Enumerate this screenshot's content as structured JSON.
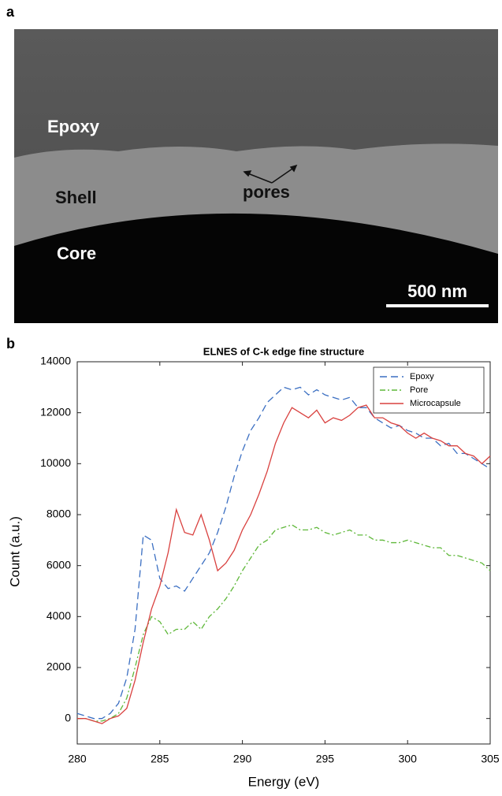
{
  "panel_labels": [
    "a",
    "b"
  ],
  "image": {
    "labels": [
      "Epoxy",
      "Shell",
      "Core",
      "pores"
    ],
    "scale_bar": "500 nm"
  },
  "chart_data": {
    "type": "line",
    "title": "ELNES of C-k edge fine structure",
    "x_label": "Energy (eV)",
    "y_label": "Count (a.u.)",
    "x": [
      280,
      280.5,
      281,
      281.5,
      282,
      282.5,
      283,
      283.5,
      284,
      284.5,
      285,
      285.5,
      286,
      286.5,
      287,
      287.5,
      288,
      288.5,
      289,
      289.5,
      290,
      290.5,
      291,
      291.5,
      292,
      292.5,
      293,
      293.5,
      294,
      294.5,
      295,
      295.5,
      296,
      296.5,
      297,
      297.5,
      298,
      298.5,
      299,
      299.5,
      300,
      300.5,
      301,
      301.5,
      302,
      302.5,
      303,
      303.5,
      304,
      304.5,
      305
    ],
    "series": [
      {
        "name": "Epoxy",
        "color": "#3b6fc2",
        "linestyle": "dashed",
        "values": [
          200,
          100,
          0,
          0,
          200,
          600,
          1600,
          3500,
          7200,
          7000,
          5500,
          5100,
          5200,
          5000,
          5500,
          6000,
          6500,
          7300,
          8300,
          9500,
          10500,
          11300,
          11800,
          12400,
          12700,
          13000,
          12900,
          13000,
          12700,
          12900,
          12700,
          12600,
          12500,
          12600,
          12200,
          12200,
          11800,
          11600,
          11400,
          11500,
          11300,
          11200,
          11000,
          11000,
          10700,
          10800,
          10400,
          10400,
          10200,
          10000,
          9800
        ]
      },
      {
        "name": "Pore",
        "color": "#5fb83a",
        "linestyle": "dashdot",
        "values": [
          0,
          0,
          -100,
          -100,
          0,
          200,
          800,
          2000,
          3300,
          4000,
          3800,
          3300,
          3500,
          3500,
          3800,
          3500,
          4000,
          4300,
          4700,
          5200,
          5800,
          6300,
          6800,
          7000,
          7400,
          7500,
          7600,
          7400,
          7400,
          7500,
          7300,
          7200,
          7300,
          7400,
          7200,
          7200,
          7000,
          7000,
          6900,
          6900,
          7000,
          6900,
          6800,
          6700,
          6700,
          6400,
          6400,
          6300,
          6200,
          6100,
          5800
        ]
      },
      {
        "name": "Microcapsule",
        "color": "#d9413f",
        "linestyle": "solid",
        "values": [
          0,
          0,
          -100,
          -200,
          0,
          100,
          400,
          1500,
          3000,
          4300,
          5200,
          6500,
          8200,
          7300,
          7200,
          8000,
          7000,
          5800,
          6100,
          6600,
          7400,
          8000,
          8800,
          9700,
          10800,
          11600,
          12200,
          12000,
          11800,
          12100,
          11600,
          11800,
          11700,
          11900,
          12200,
          12300,
          11800,
          11800,
          11600,
          11500,
          11200,
          11000,
          11200,
          11000,
          10900,
          10700,
          10700,
          10400,
          10300,
          10000,
          10300
        ]
      }
    ],
    "xlim": [
      280,
      305
    ],
    "xticks": [
      280,
      285,
      290,
      295,
      300,
      305
    ],
    "ylim": [
      -1000,
      14000
    ],
    "yticks": [
      0,
      2000,
      4000,
      6000,
      8000,
      10000,
      12000,
      14000
    ],
    "legend": "upper right"
  }
}
